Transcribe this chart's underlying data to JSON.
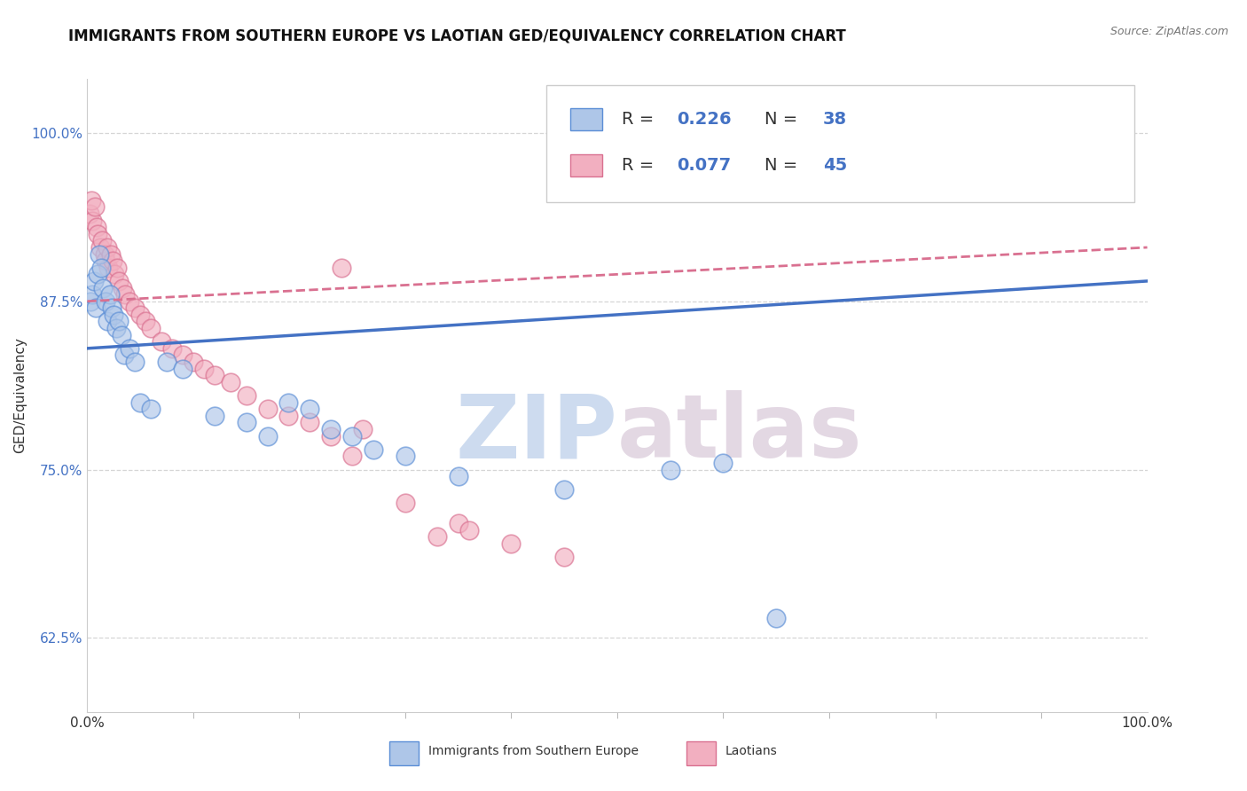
{
  "title": "IMMIGRANTS FROM SOUTHERN EUROPE VS LAOTIAN GED/EQUIVALENCY CORRELATION CHART",
  "source": "Source: ZipAtlas.com",
  "ylabel": "GED/Equivalency",
  "xlim": [
    0.0,
    100.0
  ],
  "ylim": [
    57.0,
    104.0
  ],
  "yticks": [
    62.5,
    75.0,
    87.5,
    100.0
  ],
  "blue_R": 0.226,
  "blue_N": 38,
  "pink_R": 0.077,
  "pink_N": 45,
  "blue_color": "#aec6e8",
  "blue_edge_color": "#5b8ed6",
  "blue_line_color": "#4472c4",
  "pink_color": "#f2afc0",
  "pink_edge_color": "#d97090",
  "pink_line_color": "#d97090",
  "watermark_zip": "ZIP",
  "watermark_atlas": "atlas",
  "legend_label_blue": "Immigrants from Southern Europe",
  "legend_label_pink": "Laotians",
  "blue_scatter_x": [
    0.3,
    0.5,
    0.6,
    0.8,
    1.0,
    1.1,
    1.3,
    1.5,
    1.7,
    1.9,
    2.1,
    2.3,
    2.5,
    2.7,
    3.0,
    3.2,
    3.5,
    4.0,
    4.5,
    5.0,
    6.0,
    7.5,
    9.0,
    12.0,
    15.0,
    17.0,
    19.0,
    21.0,
    23.0,
    25.0,
    27.0,
    30.0,
    35.0,
    45.0,
    55.0,
    60.0,
    65.0,
    97.0
  ],
  "blue_scatter_y": [
    87.5,
    88.0,
    89.0,
    87.0,
    89.5,
    91.0,
    90.0,
    88.5,
    87.5,
    86.0,
    88.0,
    87.0,
    86.5,
    85.5,
    86.0,
    85.0,
    83.5,
    84.0,
    83.0,
    80.0,
    79.5,
    83.0,
    82.5,
    79.0,
    78.5,
    77.5,
    80.0,
    79.5,
    78.0,
    77.5,
    76.5,
    76.0,
    74.5,
    73.5,
    75.0,
    75.5,
    64.0,
    100.0
  ],
  "pink_scatter_x": [
    0.2,
    0.4,
    0.5,
    0.7,
    0.9,
    1.0,
    1.2,
    1.4,
    1.6,
    1.7,
    1.9,
    2.0,
    2.2,
    2.4,
    2.6,
    2.8,
    3.0,
    3.3,
    3.6,
    4.0,
    4.5,
    5.0,
    5.5,
    6.0,
    7.0,
    8.0,
    9.0,
    10.0,
    11.0,
    12.0,
    13.5,
    15.0,
    17.0,
    19.0,
    21.0,
    25.0,
    30.0,
    33.0,
    35.0,
    36.0,
    40.0,
    45.0,
    23.0,
    24.0,
    26.0
  ],
  "pink_scatter_y": [
    94.0,
    95.0,
    93.5,
    94.5,
    93.0,
    92.5,
    91.5,
    92.0,
    91.0,
    90.5,
    91.5,
    90.0,
    91.0,
    90.5,
    89.5,
    90.0,
    89.0,
    88.5,
    88.0,
    87.5,
    87.0,
    86.5,
    86.0,
    85.5,
    84.5,
    84.0,
    83.5,
    83.0,
    82.5,
    82.0,
    81.5,
    80.5,
    79.5,
    79.0,
    78.5,
    76.0,
    72.5,
    70.0,
    71.0,
    70.5,
    69.5,
    68.5,
    77.5,
    90.0,
    78.0
  ],
  "blue_trend_x0": 0.0,
  "blue_trend_y0": 84.0,
  "blue_trend_x1": 100.0,
  "blue_trend_y1": 89.0,
  "pink_trend_x0": 0.0,
  "pink_trend_y0": 87.5,
  "pink_trend_x1": 100.0,
  "pink_trend_y1": 91.5,
  "background_color": "#ffffff",
  "grid_color": "#cccccc",
  "title_fontsize": 12,
  "tick_fontsize": 11,
  "legend_fontsize": 14
}
